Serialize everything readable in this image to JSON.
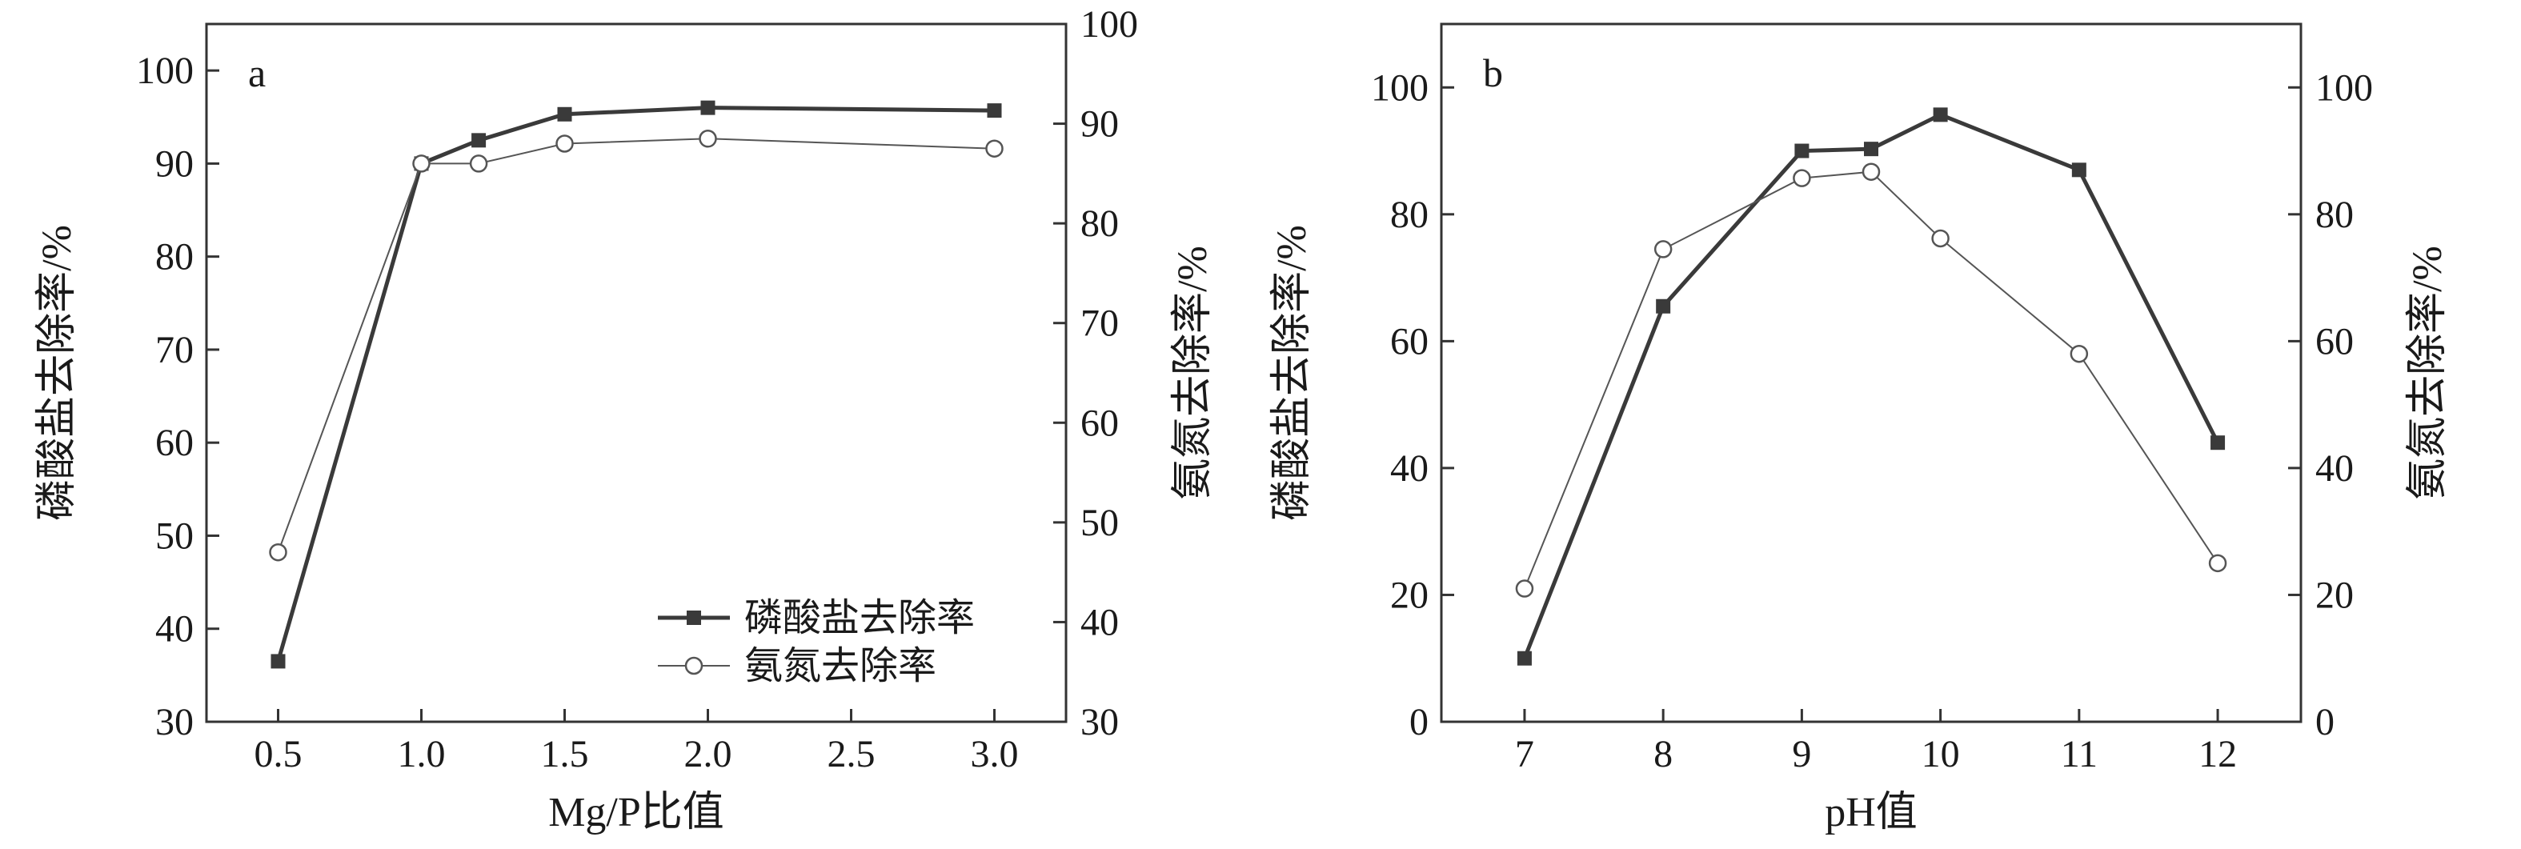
{
  "chart_data": [
    {
      "type": "line",
      "panel_label": "a",
      "xlabel": "Mg/P比值",
      "ylabel": "磷酸盐去除率/%",
      "y2label": "氨氮去除率/%",
      "xlim": [
        0.25,
        3.25
      ],
      "ylim": [
        30,
        105
      ],
      "y2lim": [
        30,
        100
      ],
      "xticks": [
        "0.5",
        "1.0",
        "1.5",
        "2.0",
        "2.5",
        "3.0"
      ],
      "yticks": [
        "30",
        "40",
        "50",
        "60",
        "70",
        "80",
        "90",
        "100"
      ],
      "y2ticks": [
        "30",
        "40",
        "50",
        "60",
        "70",
        "80",
        "90",
        "100"
      ],
      "legend_position": "bottom-right",
      "series": [
        {
          "name": "磷酸盐去除率",
          "axis": "left",
          "marker": "filled-square",
          "color": "#3a3a3a",
          "x": [
            0.5,
            1.0,
            1.2,
            1.5,
            2.0,
            3.0
          ],
          "y": [
            36.5,
            90.0,
            92.5,
            95.3,
            96.0,
            95.7
          ]
        },
        {
          "name": "氨氮去除率",
          "axis": "right",
          "marker": "open-circle",
          "color": "#555555",
          "x": [
            0.5,
            1.0,
            1.2,
            1.5,
            2.0,
            3.0
          ],
          "y": [
            47.0,
            86.0,
            86.0,
            88.0,
            88.5,
            87.5
          ]
        }
      ]
    },
    {
      "type": "line",
      "panel_label": "b",
      "xlabel": "pH值",
      "ylabel": "磷酸盐去除率/%",
      "y2label": "氨氮去除率/%",
      "xlim": [
        6.4,
        12.6
      ],
      "ylim": [
        0,
        110
      ],
      "y2lim": [
        0,
        110
      ],
      "xticks": [
        "7",
        "8",
        "9",
        "10",
        "11",
        "12"
      ],
      "yticks": [
        "0",
        "20",
        "40",
        "60",
        "80",
        "100"
      ],
      "y2ticks": [
        "0",
        "20",
        "40",
        "60",
        "80",
        "100"
      ],
      "series": [
        {
          "axis": "left",
          "marker": "filled-square",
          "color": "#3a3a3a",
          "x": [
            7,
            8,
            9,
            9.5,
            10,
            11,
            12
          ],
          "y": [
            10.0,
            65.5,
            90.0,
            90.3,
            95.7,
            87.0,
            44.0
          ]
        },
        {
          "axis": "right",
          "marker": "open-circle",
          "color": "#555555",
          "x": [
            7,
            8,
            9,
            9.5,
            10,
            11,
            12
          ],
          "y": [
            21.0,
            74.5,
            85.7,
            86.7,
            76.2,
            58.0,
            25.0
          ]
        }
      ]
    }
  ]
}
